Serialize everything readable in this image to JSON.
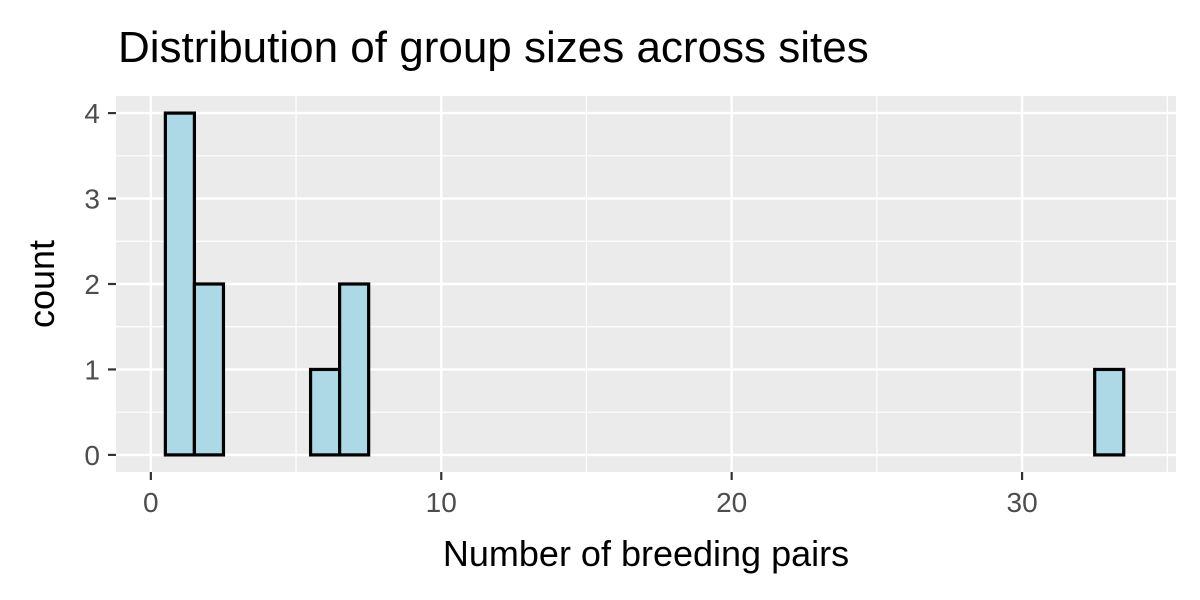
{
  "chart_data": {
    "type": "bar",
    "title": "Distribution of group sizes across sites",
    "xlabel": "Number of breeding pairs",
    "ylabel": "count",
    "xlim": [
      -1.2,
      35.3
    ],
    "ylim": [
      -0.2,
      4.2
    ],
    "x_ticks": [
      0,
      10,
      20,
      30
    ],
    "y_ticks": [
      0,
      1,
      2,
      3,
      4
    ],
    "bin_width": 1,
    "bins": [
      {
        "x0": 0.5,
        "x1": 1.5,
        "count": 4
      },
      {
        "x0": 1.5,
        "x1": 2.5,
        "count": 2
      },
      {
        "x0": 2.5,
        "x1": 3.5,
        "count": 0
      },
      {
        "x0": 3.5,
        "x1": 4.5,
        "count": 0
      },
      {
        "x0": 4.5,
        "x1": 5.5,
        "count": 0
      },
      {
        "x0": 5.5,
        "x1": 6.5,
        "count": 1
      },
      {
        "x0": 6.5,
        "x1": 7.5,
        "count": 2
      },
      {
        "x0": 7.5,
        "x1": 8.5,
        "count": 0
      },
      {
        "x0": 8.5,
        "x1": 9.5,
        "count": 0
      },
      {
        "x0": 9.5,
        "x1": 10.5,
        "count": 0
      },
      {
        "x0": 10.5,
        "x1": 11.5,
        "count": 0
      },
      {
        "x0": 11.5,
        "x1": 12.5,
        "count": 0
      },
      {
        "x0": 12.5,
        "x1": 13.5,
        "count": 0
      },
      {
        "x0": 13.5,
        "x1": 14.5,
        "count": 0
      },
      {
        "x0": 14.5,
        "x1": 15.5,
        "count": 0
      },
      {
        "x0": 15.5,
        "x1": 16.5,
        "count": 0
      },
      {
        "x0": 16.5,
        "x1": 17.5,
        "count": 0
      },
      {
        "x0": 17.5,
        "x1": 18.5,
        "count": 0
      },
      {
        "x0": 18.5,
        "x1": 19.5,
        "count": 0
      },
      {
        "x0": 19.5,
        "x1": 20.5,
        "count": 0
      },
      {
        "x0": 20.5,
        "x1": 21.5,
        "count": 0
      },
      {
        "x0": 21.5,
        "x1": 22.5,
        "count": 0
      },
      {
        "x0": 22.5,
        "x1": 23.5,
        "count": 0
      },
      {
        "x0": 23.5,
        "x1": 24.5,
        "count": 0
      },
      {
        "x0": 24.5,
        "x1": 25.5,
        "count": 0
      },
      {
        "x0": 25.5,
        "x1": 26.5,
        "count": 0
      },
      {
        "x0": 26.5,
        "x1": 27.5,
        "count": 0
      },
      {
        "x0": 27.5,
        "x1": 28.5,
        "count": 0
      },
      {
        "x0": 28.5,
        "x1": 29.5,
        "count": 0
      },
      {
        "x0": 29.5,
        "x1": 30.5,
        "count": 0
      },
      {
        "x0": 30.5,
        "x1": 31.5,
        "count": 0
      },
      {
        "x0": 31.5,
        "x1": 32.5,
        "count": 0
      },
      {
        "x0": 32.5,
        "x1": 33.5,
        "count": 1
      }
    ],
    "grid": true,
    "legend": "none",
    "colors": {
      "bar_fill": "#add8e6",
      "bar_stroke": "#000000",
      "panel_background": "#ebebeb",
      "grid_major": "#ffffff",
      "grid_minor": "#f5f5f5",
      "tick_text": "#4d4d4d",
      "tick_mark": "#333333"
    }
  }
}
